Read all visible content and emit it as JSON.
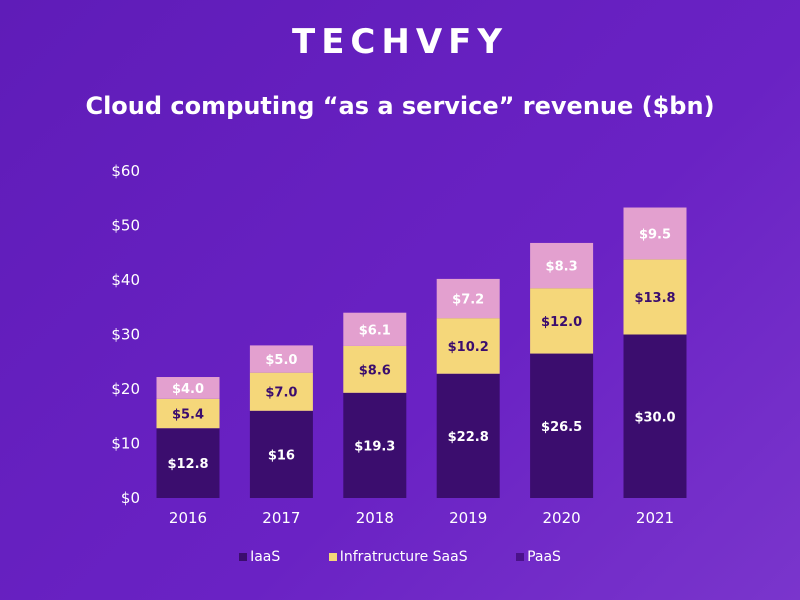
{
  "logo": "TECHVFY",
  "colors": {
    "IaaS": "#3b0d6e",
    "Infratructure SaaS": "#f5d77a",
    "PaaS": "#e3a0cf",
    "legend_PaaS": "#4a128a"
  },
  "chart_data": {
    "type": "bar",
    "stacked": true,
    "title": "Cloud computing “as a service” revenue ($bn)",
    "categories": [
      "2016",
      "2017",
      "2018",
      "2019",
      "2020",
      "2021"
    ],
    "series": [
      {
        "name": "IaaS",
        "values": [
          12.8,
          16,
          19.3,
          22.8,
          26.5,
          30.0
        ],
        "labels": [
          "$12.8",
          "$16",
          "$19.3",
          "$22.8",
          "$26.5",
          "$30.0"
        ]
      },
      {
        "name": "Infratructure SaaS",
        "values": [
          5.4,
          7.0,
          8.6,
          10.2,
          12.0,
          13.8
        ],
        "labels": [
          "$5.4",
          "$7.0",
          "$8.6",
          "$10.2",
          "$12.0",
          "$13.8"
        ]
      },
      {
        "name": "PaaS",
        "values": [
          4.0,
          5.0,
          6.1,
          7.2,
          8.3,
          9.5
        ],
        "labels": [
          "$4.0",
          "$5.0",
          "$6.1",
          "$7.2",
          "$8.3",
          "$9.5"
        ]
      }
    ],
    "ylim": [
      0,
      60
    ],
    "yticks": [
      "$0",
      "$10",
      "$20",
      "$30",
      "$40",
      "$50",
      "$60"
    ],
    "grid": false,
    "legend": "bottom"
  }
}
